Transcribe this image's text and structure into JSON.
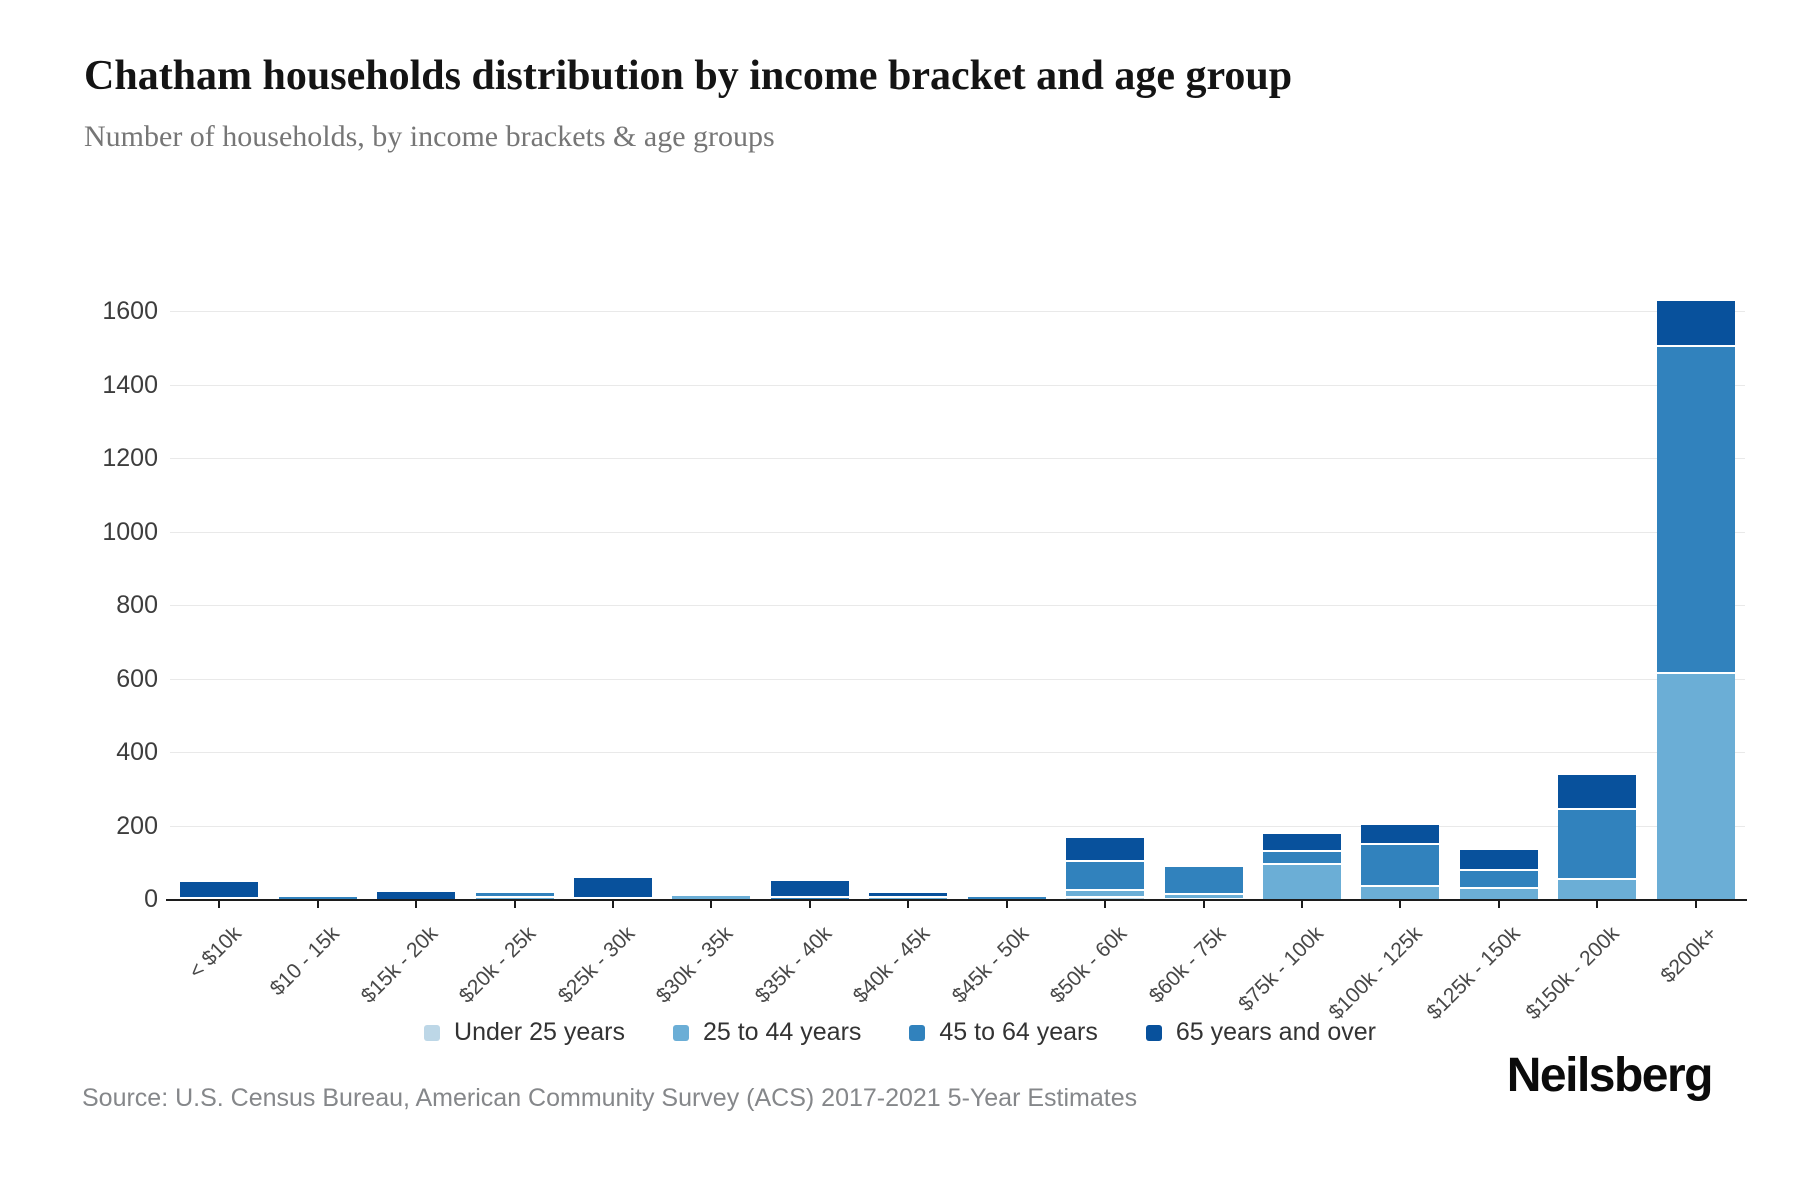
{
  "header": {
    "title": "Chatham households distribution by income bracket and age group",
    "subtitle": "Number of households, by income brackets & age groups"
  },
  "chart_data": {
    "type": "bar",
    "stacked": true,
    "title": "Chatham households distribution by income bracket and age group",
    "subtitle": "Number of households, by income brackets & age groups",
    "xlabel": "",
    "ylabel": "",
    "ylim": [
      0,
      1600
    ],
    "yticks": [
      0,
      200,
      400,
      600,
      800,
      1000,
      1200,
      1400,
      1600
    ],
    "grid": "horizontal",
    "legend_position": "bottom",
    "categories": [
      "< $10k",
      "$10 - 15k",
      "$15k - 20k",
      "$20k - 25k",
      "$25k - 30k",
      "$30k - 35k",
      "$35k - 40k",
      "$40k - 45k",
      "$45k - 50k",
      "$50k - 60k",
      "$60k - 75k",
      "$75k - 100k",
      "$100k - 125k",
      "$125k - 150k",
      "$150k - 200k",
      "$200k+"
    ],
    "series": [
      {
        "name": "Under 25 years",
        "color": "#bdd7e7",
        "values": [
          0,
          0,
          0,
          0,
          0,
          0,
          0,
          0,
          0,
          10,
          5,
          0,
          0,
          0,
          0,
          0
        ]
      },
      {
        "name": "25 to 44 years",
        "color": "#6baed6",
        "values": [
          8,
          0,
          0,
          12,
          8,
          10,
          4,
          10,
          0,
          20,
          15,
          100,
          40,
          35,
          60,
          620
        ]
      },
      {
        "name": "45 to 64 years",
        "color": "#3182bd",
        "values": [
          0,
          8,
          0,
          8,
          0,
          0,
          8,
          0,
          8,
          80,
          70,
          35,
          115,
          50,
          190,
          890
        ]
      },
      {
        "name": "65 years and over",
        "color": "#08519c",
        "values": [
          42,
          0,
          22,
          0,
          52,
          0,
          40,
          10,
          0,
          60,
          0,
          45,
          50,
          50,
          90,
          120
        ]
      }
    ]
  },
  "footer": {
    "source": "Source: U.S. Census Bureau, American Community Survey (ACS) 2017-2021 5-Year Estimates",
    "brand": "Neilsberg"
  }
}
